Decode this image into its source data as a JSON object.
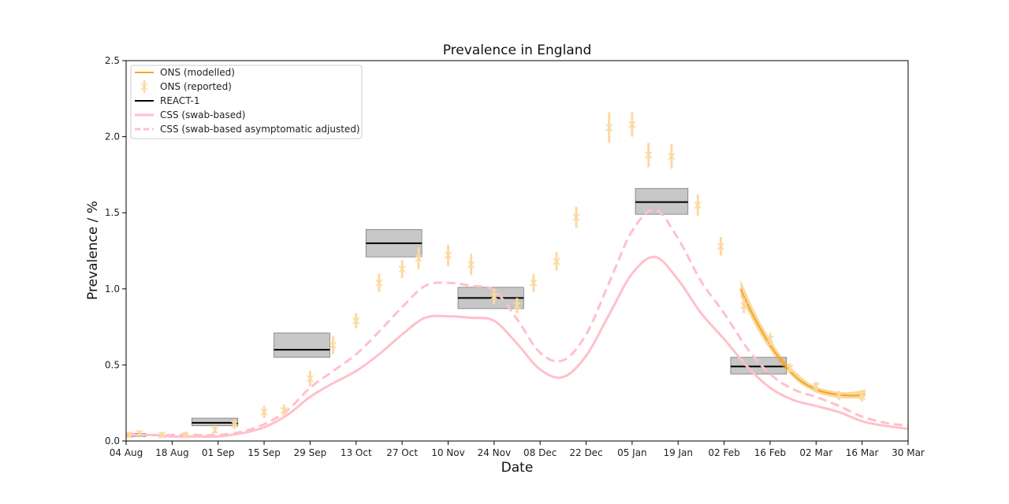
{
  "chart_data": {
    "type": "line",
    "title": "Prevalence in England",
    "xlabel": "Date",
    "ylabel": "Prevalence / %",
    "xlim": [
      "2020-08-04",
      "2021-03-30"
    ],
    "ylim": [
      0,
      2.5
    ],
    "x_ticks": [
      "04 Aug",
      "18 Aug",
      "01 Sep",
      "15 Sep",
      "29 Sep",
      "13 Oct",
      "27 Oct",
      "10 Nov",
      "24 Nov",
      "08 Dec",
      "22 Dec",
      "05 Jan",
      "19 Jan",
      "02 Feb",
      "16 Feb",
      "02 Mar",
      "16 Mar",
      "30 Mar"
    ],
    "y_ticks": [
      "0.0",
      "0.5",
      "1.0",
      "1.5",
      "2.0",
      "2.5"
    ],
    "grid": false,
    "legend_position": "top-left",
    "legend": [
      "ONS (modelled)",
      "ONS (reported)",
      "REACT-1",
      "CSS (swab-based)",
      "CSS (swab-based asymptomatic adjusted)"
    ],
    "colors": {
      "ons": "#f5a623",
      "ons_light": "#fdd8a0",
      "react": "#000000",
      "react_box": "#bdbdbd",
      "css": "#ffc0cb"
    },
    "series": [
      {
        "name": "ONS (modelled)",
        "style": "line-with-band",
        "points": [
          {
            "x": "2021-02-07",
            "y": 1.0,
            "lo": 0.95,
            "hi": 1.06
          },
          {
            "x": "2021-02-10",
            "y": 0.86,
            "lo": 0.82,
            "hi": 0.91
          },
          {
            "x": "2021-02-13",
            "y": 0.74,
            "lo": 0.7,
            "hi": 0.78
          },
          {
            "x": "2021-02-16",
            "y": 0.63,
            "lo": 0.6,
            "hi": 0.67
          },
          {
            "x": "2021-02-19",
            "y": 0.54,
            "lo": 0.51,
            "hi": 0.57
          },
          {
            "x": "2021-02-22",
            "y": 0.46,
            "lo": 0.44,
            "hi": 0.49
          },
          {
            "x": "2021-02-25",
            "y": 0.4,
            "lo": 0.38,
            "hi": 0.43
          },
          {
            "x": "2021-02-28",
            "y": 0.36,
            "lo": 0.34,
            "hi": 0.38
          },
          {
            "x": "2021-03-03",
            "y": 0.33,
            "lo": 0.31,
            "hi": 0.35
          },
          {
            "x": "2021-03-07",
            "y": 0.31,
            "lo": 0.29,
            "hi": 0.33
          },
          {
            "x": "2021-03-11",
            "y": 0.3,
            "lo": 0.28,
            "hi": 0.32
          },
          {
            "x": "2021-03-15",
            "y": 0.3,
            "lo": 0.28,
            "hi": 0.33
          },
          {
            "x": "2021-03-17",
            "y": 0.31,
            "lo": 0.29,
            "hi": 0.34
          }
        ]
      },
      {
        "name": "ONS (reported)",
        "style": "x-markers-with-errorbars",
        "points": [
          {
            "x": "2020-08-05",
            "y": 0.04,
            "lo": 0.02,
            "hi": 0.06
          },
          {
            "x": "2020-08-08",
            "y": 0.05,
            "lo": 0.03,
            "hi": 0.07
          },
          {
            "x": "2020-08-15",
            "y": 0.04,
            "lo": 0.02,
            "hi": 0.06
          },
          {
            "x": "2020-08-22",
            "y": 0.04,
            "lo": 0.02,
            "hi": 0.06
          },
          {
            "x": "2020-08-31",
            "y": 0.07,
            "lo": 0.05,
            "hi": 0.1
          },
          {
            "x": "2020-09-06",
            "y": 0.11,
            "lo": 0.08,
            "hi": 0.14
          },
          {
            "x": "2020-09-15",
            "y": 0.19,
            "lo": 0.15,
            "hi": 0.23
          },
          {
            "x": "2020-09-21",
            "y": 0.2,
            "lo": 0.16,
            "hi": 0.24
          },
          {
            "x": "2020-09-29",
            "y": 0.41,
            "lo": 0.36,
            "hi": 0.46
          },
          {
            "x": "2020-10-06",
            "y": 0.63,
            "lo": 0.57,
            "hi": 0.69
          },
          {
            "x": "2020-10-13",
            "y": 0.79,
            "lo": 0.74,
            "hi": 0.84
          },
          {
            "x": "2020-10-20",
            "y": 1.04,
            "lo": 0.98,
            "hi": 1.1
          },
          {
            "x": "2020-10-27",
            "y": 1.13,
            "lo": 1.07,
            "hi": 1.19
          },
          {
            "x": "2020-11-01",
            "y": 1.2,
            "lo": 1.13,
            "hi": 1.27
          },
          {
            "x": "2020-11-10",
            "y": 1.22,
            "lo": 1.15,
            "hi": 1.29
          },
          {
            "x": "2020-11-17",
            "y": 1.16,
            "lo": 1.09,
            "hi": 1.23
          },
          {
            "x": "2020-11-24",
            "y": 0.95,
            "lo": 0.9,
            "hi": 1.0
          },
          {
            "x": "2020-12-01",
            "y": 0.89,
            "lo": 0.84,
            "hi": 0.94
          },
          {
            "x": "2020-12-06",
            "y": 1.04,
            "lo": 0.98,
            "hi": 1.1
          },
          {
            "x": "2020-12-13",
            "y": 1.18,
            "lo": 1.12,
            "hi": 1.24
          },
          {
            "x": "2020-12-19",
            "y": 1.47,
            "lo": 1.4,
            "hi": 1.54
          },
          {
            "x": "2020-12-29",
            "y": 2.06,
            "lo": 1.96,
            "hi": 2.16
          },
          {
            "x": "2021-01-05",
            "y": 2.08,
            "lo": 2.0,
            "hi": 2.16
          },
          {
            "x": "2021-01-10",
            "y": 1.88,
            "lo": 1.8,
            "hi": 1.96
          },
          {
            "x": "2021-01-17",
            "y": 1.87,
            "lo": 1.79,
            "hi": 1.95
          },
          {
            "x": "2021-01-25",
            "y": 1.55,
            "lo": 1.48,
            "hi": 1.62
          },
          {
            "x": "2021-02-01",
            "y": 1.28,
            "lo": 1.22,
            "hi": 1.34
          },
          {
            "x": "2021-02-08",
            "y": 0.89,
            "lo": 0.84,
            "hi": 0.94
          },
          {
            "x": "2021-02-16",
            "y": 0.67,
            "lo": 0.63,
            "hi": 0.71
          },
          {
            "x": "2021-02-22",
            "y": 0.48,
            "lo": 0.45,
            "hi": 0.51
          },
          {
            "x": "2021-03-02",
            "y": 0.36,
            "lo": 0.33,
            "hi": 0.39
          },
          {
            "x": "2021-03-09",
            "y": 0.3,
            "lo": 0.27,
            "hi": 0.33
          },
          {
            "x": "2021-03-16",
            "y": 0.29,
            "lo": 0.26,
            "hi": 0.32
          }
        ]
      },
      {
        "name": "REACT-1",
        "style": "segments-with-boxes",
        "rounds": [
          {
            "start": "2020-08-03",
            "end": "2020-08-10",
            "y": 0.04,
            "lo": 0.03,
            "hi": 0.05
          },
          {
            "start": "2020-08-24",
            "end": "2020-09-07",
            "y": 0.12,
            "lo": 0.1,
            "hi": 0.15
          },
          {
            "start": "2020-09-18",
            "end": "2020-10-05",
            "y": 0.6,
            "lo": 0.55,
            "hi": 0.71
          },
          {
            "start": "2020-10-16",
            "end": "2020-11-02",
            "y": 1.3,
            "lo": 1.21,
            "hi": 1.39
          },
          {
            "start": "2020-11-13",
            "end": "2020-12-03",
            "y": 0.94,
            "lo": 0.87,
            "hi": 1.01
          },
          {
            "start": "2021-01-06",
            "end": "2021-01-22",
            "y": 1.57,
            "lo": 1.49,
            "hi": 1.66
          },
          {
            "start": "2021-02-04",
            "end": "2021-02-21",
            "y": 0.49,
            "lo": 0.44,
            "hi": 0.55
          }
        ]
      },
      {
        "name": "CSS (swab-based)",
        "style": "solid",
        "points": [
          {
            "x": "2020-08-04",
            "y": 0.04
          },
          {
            "x": "2020-08-11",
            "y": 0.04
          },
          {
            "x": "2020-08-18",
            "y": 0.03
          },
          {
            "x": "2020-08-25",
            "y": 0.03
          },
          {
            "x": "2020-09-01",
            "y": 0.03
          },
          {
            "x": "2020-09-08",
            "y": 0.05
          },
          {
            "x": "2020-09-15",
            "y": 0.09
          },
          {
            "x": "2020-09-22",
            "y": 0.17
          },
          {
            "x": "2020-09-29",
            "y": 0.29
          },
          {
            "x": "2020-10-06",
            "y": 0.38
          },
          {
            "x": "2020-10-13",
            "y": 0.46
          },
          {
            "x": "2020-10-20",
            "y": 0.57
          },
          {
            "x": "2020-10-27",
            "y": 0.7
          },
          {
            "x": "2020-11-03",
            "y": 0.81
          },
          {
            "x": "2020-11-10",
            "y": 0.82
          },
          {
            "x": "2020-11-17",
            "y": 0.81
          },
          {
            "x": "2020-11-24",
            "y": 0.79
          },
          {
            "x": "2020-12-01",
            "y": 0.64
          },
          {
            "x": "2020-12-08",
            "y": 0.47
          },
          {
            "x": "2020-12-15",
            "y": 0.42
          },
          {
            "x": "2020-12-22",
            "y": 0.56
          },
          {
            "x": "2020-12-29",
            "y": 0.83
          },
          {
            "x": "2021-01-05",
            "y": 1.1
          },
          {
            "x": "2021-01-12",
            "y": 1.21
          },
          {
            "x": "2021-01-19",
            "y": 1.06
          },
          {
            "x": "2021-01-26",
            "y": 0.84
          },
          {
            "x": "2021-02-02",
            "y": 0.67
          },
          {
            "x": "2021-02-09",
            "y": 0.49
          },
          {
            "x": "2021-02-16",
            "y": 0.35
          },
          {
            "x": "2021-02-23",
            "y": 0.27
          },
          {
            "x": "2021-03-02",
            "y": 0.23
          },
          {
            "x": "2021-03-09",
            "y": 0.19
          },
          {
            "x": "2021-03-16",
            "y": 0.13
          },
          {
            "x": "2021-03-23",
            "y": 0.1
          },
          {
            "x": "2021-03-30",
            "y": 0.08
          }
        ]
      },
      {
        "name": "CSS (swab-based asymptomatic adjusted)",
        "style": "dashed",
        "points": [
          {
            "x": "2020-08-04",
            "y": 0.05
          },
          {
            "x": "2020-08-11",
            "y": 0.04
          },
          {
            "x": "2020-08-18",
            "y": 0.04
          },
          {
            "x": "2020-08-25",
            "y": 0.04
          },
          {
            "x": "2020-09-01",
            "y": 0.04
          },
          {
            "x": "2020-09-08",
            "y": 0.06
          },
          {
            "x": "2020-09-15",
            "y": 0.11
          },
          {
            "x": "2020-09-22",
            "y": 0.2
          },
          {
            "x": "2020-09-29",
            "y": 0.35
          },
          {
            "x": "2020-10-06",
            "y": 0.46
          },
          {
            "x": "2020-10-13",
            "y": 0.57
          },
          {
            "x": "2020-10-20",
            "y": 0.72
          },
          {
            "x": "2020-10-27",
            "y": 0.88
          },
          {
            "x": "2020-11-03",
            "y": 1.02
          },
          {
            "x": "2020-11-10",
            "y": 1.04
          },
          {
            "x": "2020-11-17",
            "y": 1.02
          },
          {
            "x": "2020-11-24",
            "y": 0.99
          },
          {
            "x": "2020-12-01",
            "y": 0.8
          },
          {
            "x": "2020-12-08",
            "y": 0.58
          },
          {
            "x": "2020-12-15",
            "y": 0.53
          },
          {
            "x": "2020-12-22",
            "y": 0.7
          },
          {
            "x": "2020-12-29",
            "y": 1.04
          },
          {
            "x": "2021-01-05",
            "y": 1.38
          },
          {
            "x": "2021-01-12",
            "y": 1.52
          },
          {
            "x": "2021-01-19",
            "y": 1.33
          },
          {
            "x": "2021-01-26",
            "y": 1.05
          },
          {
            "x": "2021-02-02",
            "y": 0.84
          },
          {
            "x": "2021-02-09",
            "y": 0.61
          },
          {
            "x": "2021-02-16",
            "y": 0.44
          },
          {
            "x": "2021-02-23",
            "y": 0.34
          },
          {
            "x": "2021-03-02",
            "y": 0.29
          },
          {
            "x": "2021-03-09",
            "y": 0.23
          },
          {
            "x": "2021-03-16",
            "y": 0.16
          },
          {
            "x": "2021-03-23",
            "y": 0.12
          },
          {
            "x": "2021-03-30",
            "y": 0.1
          }
        ]
      }
    ]
  }
}
